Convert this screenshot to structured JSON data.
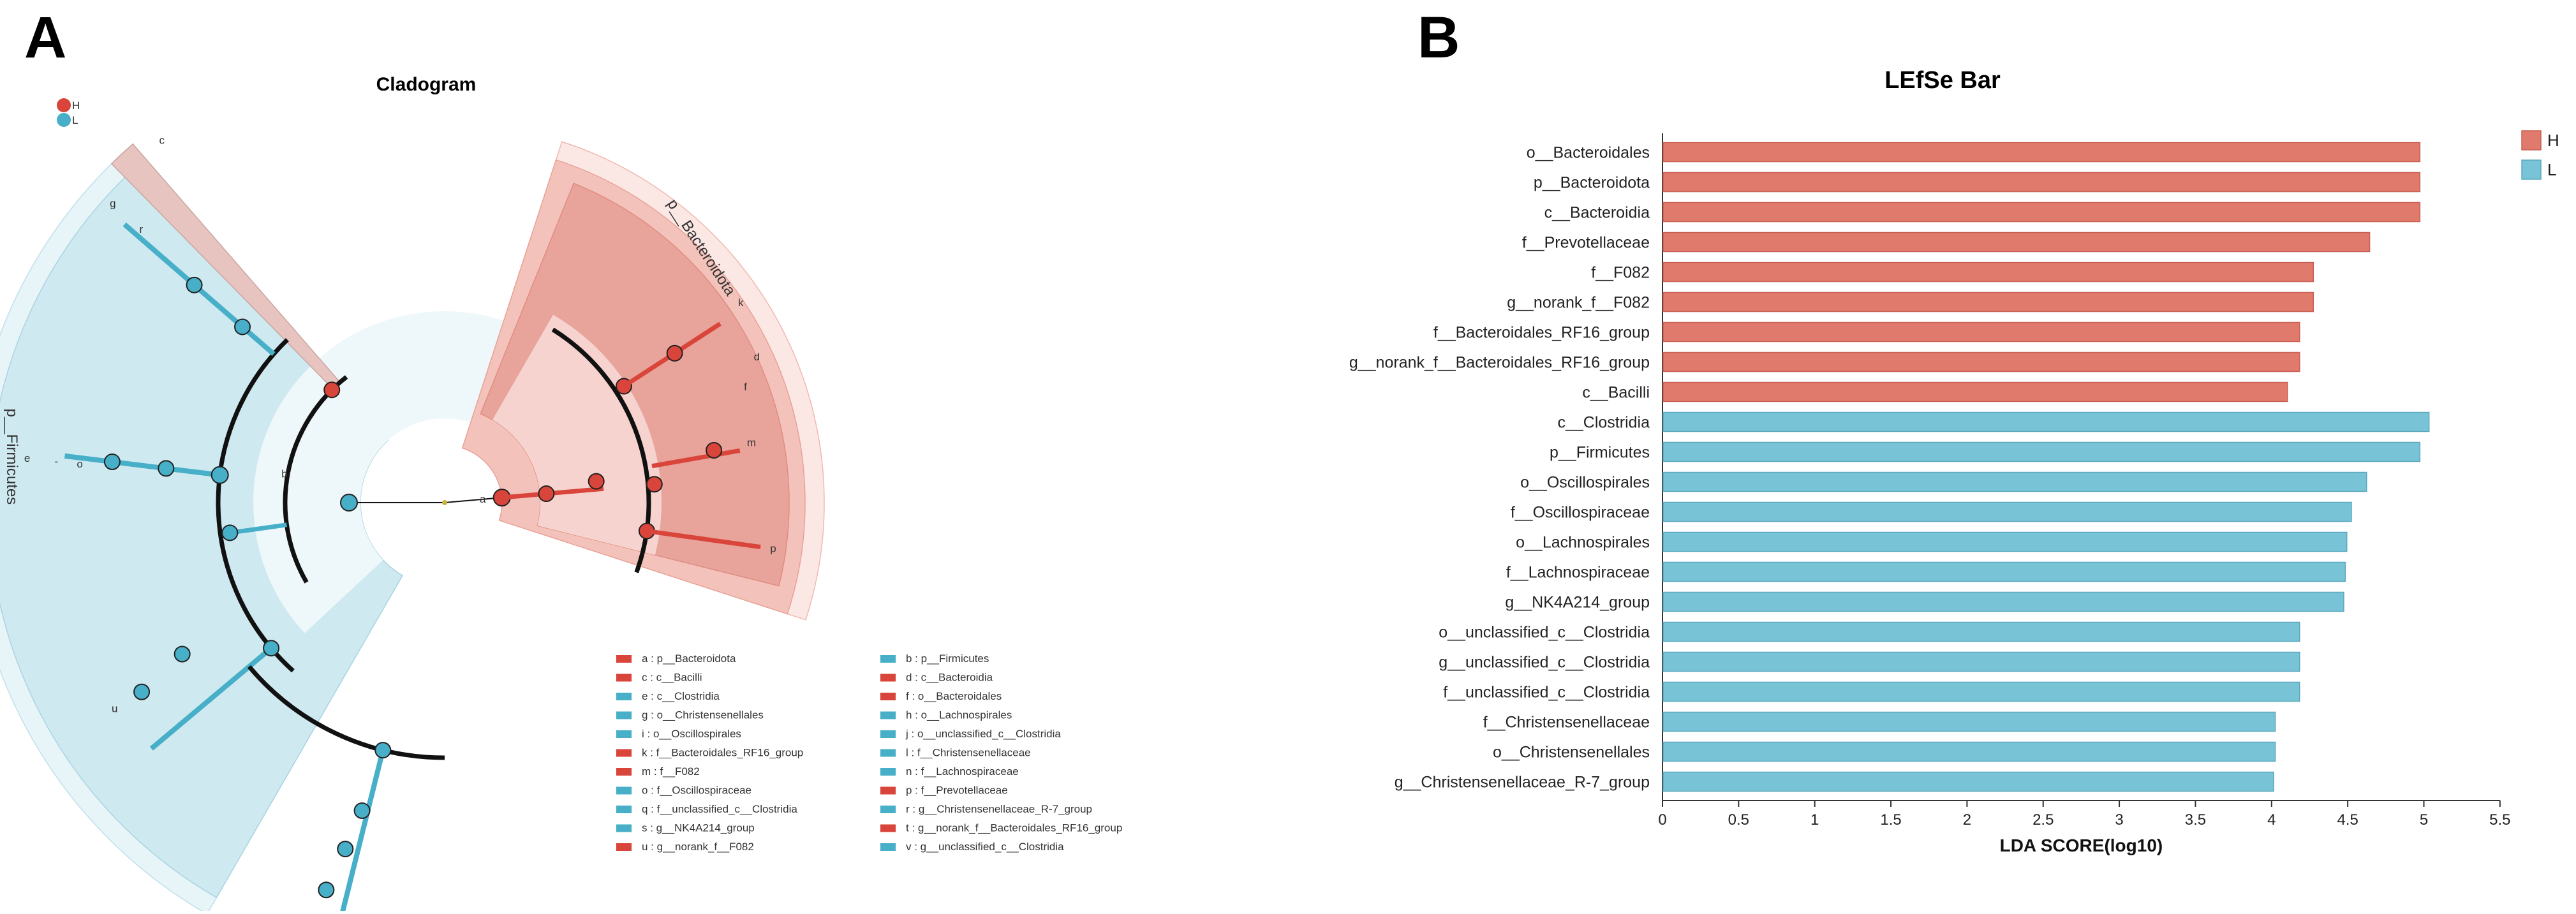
{
  "panels": {
    "a": {
      "letter": "A",
      "title": "Cladogram"
    },
    "b": {
      "letter": "B",
      "title": "LEfSe Bar"
    }
  },
  "colors": {
    "H": "#E07A6C",
    "L": "#79C3D6",
    "H_node": "#D9453A",
    "L_node": "#47AFC8",
    "H_sector": "#E8A39B",
    "L_sector": "#CFE9F1",
    "L_sector_outer": "#E7F4F8",
    "H_sector_outer": "#FBE7E4"
  },
  "cladogram": {
    "legend_groups": [
      {
        "key": "H",
        "label": "H"
      },
      {
        "key": "L",
        "label": "L"
      }
    ],
    "phylum_labels": [
      {
        "text": "p__Bacteroidota",
        "group": "H"
      },
      {
        "text": "p__Firmicutes",
        "group": "L"
      }
    ],
    "taxa_legend": [
      {
        "letter": "a",
        "group": "H",
        "text": "a : p__Bacteroidota"
      },
      {
        "letter": "b",
        "group": "L",
        "text": "b : p__Firmicutes"
      },
      {
        "letter": "c",
        "group": "H",
        "text": "c : c__Bacilli"
      },
      {
        "letter": "d",
        "group": "H",
        "text": "d : c__Bacteroidia"
      },
      {
        "letter": "e",
        "group": "L",
        "text": "e : c__Clostridia"
      },
      {
        "letter": "f",
        "group": "H",
        "text": "f : o__Bacteroidales"
      },
      {
        "letter": "g",
        "group": "L",
        "text": "g : o__Christensenellales"
      },
      {
        "letter": "h",
        "group": "L",
        "text": "h : o__Lachnospirales"
      },
      {
        "letter": "i",
        "group": "L",
        "text": "i : o__Oscillospirales"
      },
      {
        "letter": "j",
        "group": "L",
        "text": "j : o__unclassified_c__Clostridia"
      },
      {
        "letter": "k",
        "group": "H",
        "text": "k : f__Bacteroidales_RF16_group"
      },
      {
        "letter": "l",
        "group": "L",
        "text": "l : f__Christensenellaceae"
      },
      {
        "letter": "m",
        "group": "H",
        "text": "m : f__F082"
      },
      {
        "letter": "n",
        "group": "L",
        "text": "n : f__Lachnospiraceae"
      },
      {
        "letter": "o",
        "group": "L",
        "text": "o : f__Oscillospiraceae"
      },
      {
        "letter": "p",
        "group": "H",
        "text": "p : f__Prevotellaceae"
      },
      {
        "letter": "q",
        "group": "L",
        "text": "q : f__unclassified_c__Clostridia"
      },
      {
        "letter": "r",
        "group": "L",
        "text": "r : g__Christensenellaceae_R-7_group"
      },
      {
        "letter": "s",
        "group": "L",
        "text": "s : g__NK4A214_group"
      },
      {
        "letter": "t",
        "group": "H",
        "text": "t : g__norank_f__Bacteroidales_RF16_group"
      },
      {
        "letter": "u",
        "group": "H",
        "text": "u : g__norank_f__F082"
      },
      {
        "letter": "v",
        "group": "L",
        "text": "v : g__unclassified_c__Clostridia"
      }
    ]
  },
  "chart_data": {
    "type": "bar",
    "orientation": "horizontal",
    "title": "LEfSe Bar",
    "xlabel": "LDA SCORE(log10)",
    "ylabel": "",
    "xlim": [
      0,
      5.5
    ],
    "xticks": [
      0,
      0.5,
      1,
      1.5,
      2,
      2.5,
      3,
      3.5,
      4,
      4.5,
      5,
      5.5
    ],
    "xtick_labels": [
      "0",
      "0.5",
      "1",
      "1.5",
      "2",
      "2.5",
      "3",
      "3.5",
      "4",
      "4.5",
      "5",
      "5.5"
    ],
    "legend": [
      {
        "key": "H",
        "label": "H"
      },
      {
        "key": "L",
        "label": "L"
      }
    ],
    "legend_position": "top-right",
    "categories": [
      "o__Bacteroidales",
      "p__Bacteroidota",
      "c__Bacteroidia",
      "f__Prevotellaceae",
      "f__F082",
      "g__norank_f__F082",
      "f__Bacteroidales_RF16_group",
      "g__norank_f__Bacteroidales_RF16_group",
      "c__Bacilli",
      "c__Clostridia",
      "p__Firmicutes",
      "o__Oscillospirales",
      "f__Oscillospiraceae",
      "o__Lachnospirales",
      "f__Lachnospiraceae",
      "g__NK4A214_group",
      "o__unclassified_c__Clostridia",
      "g__unclassified_c__Clostridia",
      "f__unclassified_c__Clostridia",
      "f__Christensenellaceae",
      "o__Christensenellales",
      "g__Christensenellaceae_R-7_group"
    ],
    "values": [
      4.97,
      4.97,
      4.97,
      4.64,
      4.27,
      4.27,
      4.18,
      4.18,
      4.1,
      5.03,
      4.97,
      4.62,
      4.52,
      4.49,
      4.48,
      4.47,
      4.18,
      4.18,
      4.18,
      4.02,
      4.02,
      4.01
    ],
    "groups": [
      "H",
      "H",
      "H",
      "H",
      "H",
      "H",
      "H",
      "H",
      "H",
      "L",
      "L",
      "L",
      "L",
      "L",
      "L",
      "L",
      "L",
      "L",
      "L",
      "L",
      "L",
      "L"
    ]
  }
}
